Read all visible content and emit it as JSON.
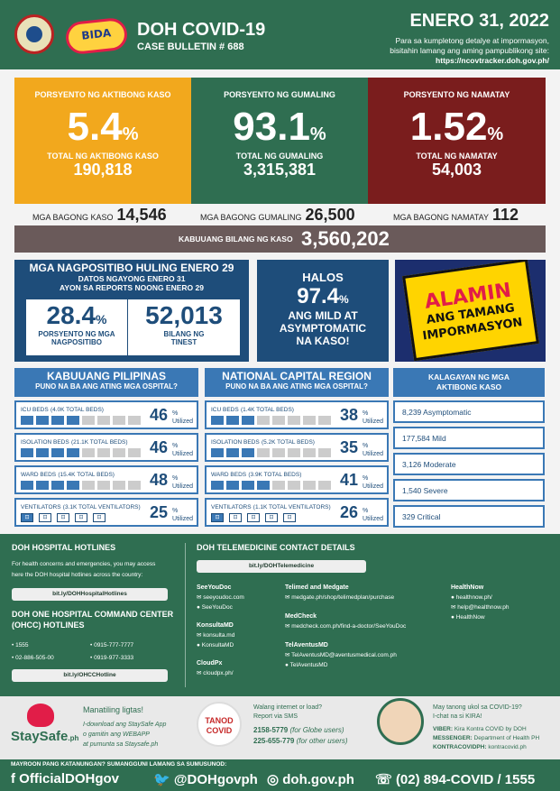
{
  "header": {
    "title": "DOH COVID-19",
    "bulletin": "CASE BULLETIN # 688",
    "date": "ENERO 31, 2022",
    "sub1": "Para sa kumpletong detalye at impormasyon,",
    "sub2": "bisitahin lamang ang aming pampublikong site:",
    "url": "https://ncovtracker.doh.gov.ph/",
    "bida": "BIDA"
  },
  "active": {
    "label": "PORSYENTO NG AKTIBONG KASO",
    "pct": "5.4",
    "total_label": "TOTAL NG AKTIBONG KASO",
    "total": "190,818",
    "color": "#f2a81d"
  },
  "recovered": {
    "label": "PORSYENTO NG GUMALING",
    "pct": "93.1",
    "total_label": "TOTAL NG GUMALING",
    "total": "3,315,381",
    "color": "#2f6e51"
  },
  "deaths": {
    "label": "PORSYENTO NG NAMATAY",
    "pct": "1.52",
    "total_label": "TOTAL NG NAMATAY",
    "total": "54,003",
    "color": "#7a1d1d"
  },
  "pct_sign": "%",
  "new": {
    "cases_label": "MGA BAGONG KASO",
    "cases": "14,546",
    "rec_label": "MGA BAGONG GUMALING",
    "rec": "26,500",
    "deaths_label": "MGA BAGONG NAMATAY",
    "deaths": "112"
  },
  "total": {
    "label": "KABUUANG BILANG NG KASO",
    "value": "3,560,202"
  },
  "positivity": {
    "title": "MGA NAGPOSITIBO HULING ENERO 29",
    "s1": "DATOS NGAYONG ENERO 31",
    "s2": "AYON SA REPORTS NOONG ENERO 29",
    "pct": "28.4",
    "pct_caption1": "PORSYENTO NG MGA",
    "pct_caption2": "NAGPOSITIBO",
    "tested": "52,013",
    "tested_caption1": "BILANG NG",
    "tested_caption2": "TINEST"
  },
  "mild": {
    "l1": "HALOS",
    "pct": "97.4",
    "l2": "ANG MILD AT",
    "l3": "ASYMPTOMATIC",
    "l4": "NA KASO!"
  },
  "alamin": {
    "l1": "ALAMIN",
    "l2": "ANG TAMANG",
    "l3": "IMPORMASYON"
  },
  "ph": {
    "title": "KABUUANG PILIPINAS",
    "sub": "PUNO NA BA ANG ATING MGA OSPITAL?",
    "rows": [
      {
        "k": "ICU BEDS",
        "t": "(4.0K TOTAL BEDS)",
        "v": "46",
        "filled": 4
      },
      {
        "k": "ISOLATION BEDS",
        "t": "(21.1K TOTAL BEDS)",
        "v": "46",
        "filled": 4
      },
      {
        "k": "WARD BEDS",
        "t": "(15.4K TOTAL BEDS)",
        "v": "48",
        "filled": 4
      },
      {
        "k": "VENTILATORS",
        "t": "(3.1K TOTAL VENTILATORS)",
        "v": "25",
        "filled": 1
      }
    ]
  },
  "ncr": {
    "title": "NATIONAL CAPITAL REGION",
    "sub": "PUNO NA BA ANG ATING MGA OSPITAL?",
    "rows": [
      {
        "k": "ICU BEDS",
        "t": "(1.4K TOTAL BEDS)",
        "v": "38",
        "filled": 3
      },
      {
        "k": "ISOLATION BEDS",
        "t": "(5.2K TOTAL BEDS)",
        "v": "35",
        "filled": 3
      },
      {
        "k": "WARD BEDS",
        "t": "(3.9K TOTAL BEDS)",
        "v": "41",
        "filled": 4
      },
      {
        "k": "VENTILATORS",
        "t": "(1.1K TOTAL VENTILATORS)",
        "v": "26",
        "filled": 1
      }
    ]
  },
  "util_label": "Utilized",
  "kalagayan": {
    "title1": "KALAGAYAN NG MGA",
    "title2": "AKTIBONG KASO",
    "items": [
      "8,239 Asymptomatic",
      "177,584 Mild",
      "3,126 Moderate",
      "1,540 Severe",
      "329 Critical"
    ]
  },
  "hotlines": {
    "title": "DOH HOSPITAL HOTLINES",
    "desc1": "For health concerns and emergencies, you may access",
    "desc2": "here the DOH hospital hotlines across the country:",
    "link": "bit.ly/DOHHospitalHotlines",
    "ohcc1": "DOH ONE HOSPITAL COMMAND CENTER",
    "ohcc2": "(OHCC) HOTLINES",
    "n1": "• 1555",
    "n2": "• 0915-777-7777",
    "n3": "• 02-886-505-00",
    "n4": "• 0919-977-3333",
    "link2": "bit.ly/OHCCHotline"
  },
  "tele": {
    "title": "DOH TELEMEDICINE CONTACT DETAILS",
    "link": "bit.ly/DOHTelemedicine",
    "c1": [
      {
        "h": "SeeYouDoc",
        "a": "seeyoudoc.com",
        "b": "SeeYouDoc"
      },
      {
        "h": "KonsultaMD",
        "a": "konsulta.md",
        "b": "KonsultaMD"
      },
      {
        "h": "CloudPx",
        "a": "cloudpx.ph/",
        "b": ""
      }
    ],
    "c2": [
      {
        "h": "Telimed and Medgate",
        "a": "medgate.ph/shop/telimedplan/purchase",
        "b": ""
      },
      {
        "h": "MedCheck",
        "a": "medcheck.com.ph/find-a-doctor/SeeYouDoc",
        "b": ""
      },
      {
        "h": "TelAventusMD",
        "a": "TelAventusMD@aventusmedical.com.ph",
        "b": "TelAventusMD"
      }
    ],
    "c3": [
      {
        "h": "HealthNow",
        "a": "healthnow.ph/",
        "b": "help@healthnow.ph",
        "c": "HealthNow"
      }
    ]
  },
  "staysafe": {
    "logo": "StaySafe",
    "logo2": ".ph",
    "h": "Manatiling ligtas!",
    "l1": "I-download ang StaySafe App",
    "l2": "o gamitin ang WEBAPP",
    "l3": "at pumunta sa Staysafe.ph"
  },
  "tanod": {
    "logo1": "TANOD",
    "logo2": "COVID",
    "l1": "Walang internet or load?",
    "l2": "Report via SMS",
    "n1": "2158-5779",
    "n1b": "(for Globe users)",
    "n2": "225-655-779",
    "n2b": "(for other users)"
  },
  "kira": {
    "l1": "May tanong ukol sa COVID-19?",
    "l2": "I-chat na si KIRA!",
    "viber": "VIBER:",
    "viber_v": "Kira Kontra COVID by DOH",
    "messenger": "MESSENGER:",
    "messenger_v": "Department of Health PH",
    "kontra": "KONTRACOVIDPH:",
    "kontra_v": "kontracovid.ph"
  },
  "footer": {
    "note": "MAYROON PANG KATANUNGAN? SUMANGGUNI LAMANG SA SUMUSUNOD:",
    "fb": "OfficialDOHgov",
    "tw": "@DOHgovph",
    "web": "doh.gov.ph",
    "phone": "(02) 894-COVID  /  1555"
  }
}
